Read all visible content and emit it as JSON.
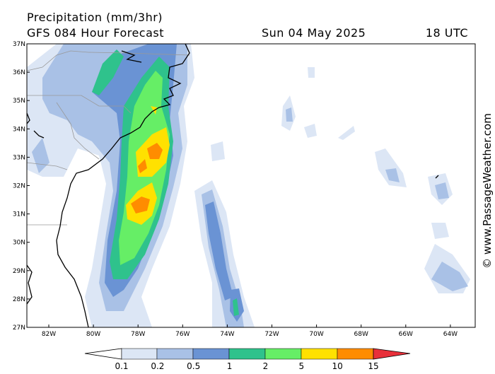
{
  "header": {
    "title": "Precipitation (mm/3hr)",
    "subtitle": "GFS 084 Hour Forecast",
    "date": "Sun 04 May 2025",
    "time": "18 UTC"
  },
  "map": {
    "latitude_labels": [
      "37N",
      "36N",
      "35N",
      "34N",
      "33N",
      "32N",
      "31N",
      "30N",
      "29N",
      "28N",
      "27N"
    ],
    "longitude_labels": [
      "82W",
      "80W",
      "78W",
      "76W",
      "74W",
      "72W",
      "70W",
      "68W",
      "66W",
      "64W"
    ]
  },
  "legend": {
    "labels": [
      "0.1",
      "0.2",
      "0.5",
      "1",
      "2",
      "5",
      "10",
      "15"
    ]
  },
  "watermark": "© www.PassageWeather.com"
}
